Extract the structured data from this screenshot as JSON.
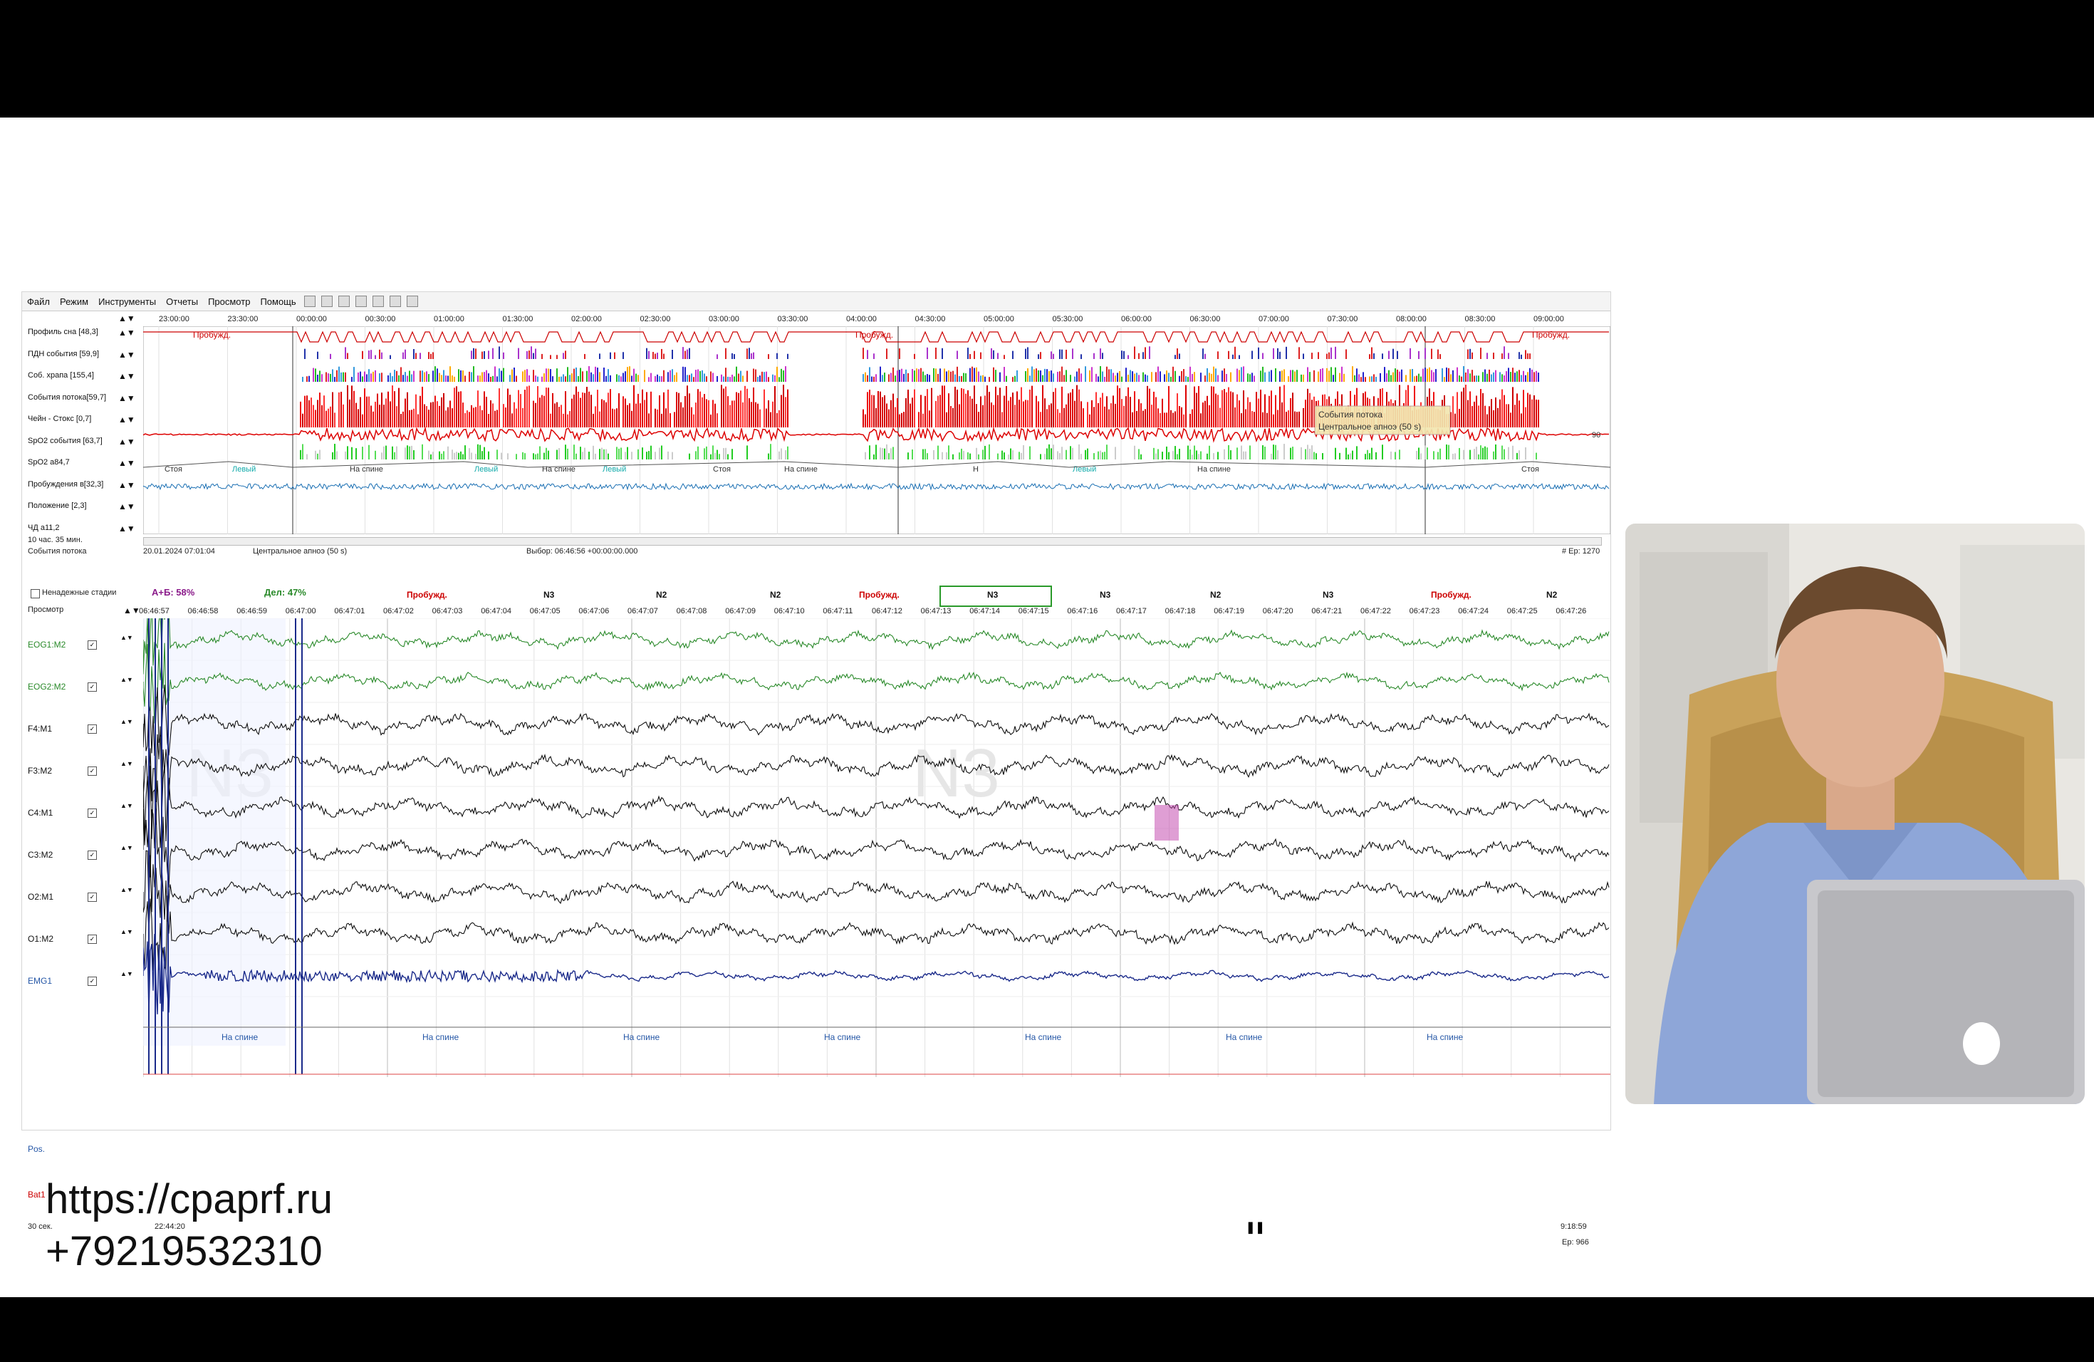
{
  "menu": [
    "Файл",
    "Режим",
    "Инструменты",
    "Отчеты",
    "Просмотр",
    "Помощь"
  ],
  "overview": {
    "times": [
      "23:00:00",
      "23:30:00",
      "00:00:00",
      "00:30:00",
      "01:00:00",
      "01:30:00",
      "02:00:00",
      "02:30:00",
      "03:00:00",
      "03:30:00",
      "04:00:00",
      "04:30:00",
      "05:00:00",
      "05:30:00",
      "06:00:00",
      "06:30:00",
      "07:00:00",
      "07:30:00",
      "08:00:00",
      "08:30:00",
      "09:00:00"
    ],
    "channels": [
      "Профиль сна [48,3]",
      "ПДН события [59,9]",
      "Соб. храпа [155,4]",
      "События потока[59,7]",
      "Чейн - Стокс [0,7]",
      "SpO2 события [63,7]",
      "SpO2 а84,7",
      "Пробуждения в[32,3]",
      "Положение [2,3]",
      "ЧД а11,2"
    ],
    "hypno_labels": [
      "Пробужд.",
      "Пробужд.",
      "Пробужд."
    ],
    "position_labels": [
      "Стоя",
      "Левый",
      "На спине",
      "Левый",
      "На спине",
      "Левый",
      "Стоя",
      "На спине",
      "Н",
      "Левый",
      "На спине",
      "Стоя"
    ],
    "tooltip_line1": "События потока",
    "tooltip_line2": "Центральное апноэ (50 s)",
    "right_value": "90",
    "duration": "10 час. 35 мин."
  },
  "status": {
    "event_type": "События потока",
    "date": "20.01.2024  07:01:04",
    "event": "Центральное апноэ (50 s)",
    "selection": "Выбор: 06:46:56  +00:00:00.000",
    "epoch_top": "# Ep: 1270"
  },
  "stages_bar": {
    "checkbox_label": "Ненадежные стадии",
    "ab": "A+Б: 58%",
    "de": "Дел: 47%",
    "stages": [
      "Пробужд.",
      "N3",
      "N2",
      "N2",
      "Пробужд.",
      "N3",
      "N3",
      "N2",
      "N3",
      "Пробужд.",
      "N2"
    ]
  },
  "page": {
    "view_label": "Просмотр",
    "times": [
      "06:46:57",
      "06:46:58",
      "06:46:59",
      "06:47:00",
      "06:47:01",
      "06:47:02",
      "06:47:03",
      "06:47:04",
      "06:47:05",
      "06:47:06",
      "06:47:07",
      "06:47:08",
      "06:47:09",
      "06:47:10",
      "06:47:11",
      "06:47:12",
      "06:47:13",
      "06:47:14",
      "06:47:15",
      "06:47:16",
      "06:47:17",
      "06:47:18",
      "06:47:19",
      "06:47:20",
      "06:47:21",
      "06:47:22",
      "06:47:23",
      "06:47:24",
      "06:47:25",
      "06:47:26"
    ],
    "channels": [
      {
        "name": "EOG1:M2",
        "color": "#2a8a2a"
      },
      {
        "name": "EOG2:M2",
        "color": "#2a8a2a"
      },
      {
        "name": "F4:M1",
        "color": "#111111"
      },
      {
        "name": "F3:M2",
        "color": "#111111"
      },
      {
        "name": "C4:M1",
        "color": "#111111"
      },
      {
        "name": "C3:M2",
        "color": "#111111"
      },
      {
        "name": "O2:M1",
        "color": "#111111"
      },
      {
        "name": "O1:M2",
        "color": "#111111"
      },
      {
        "name": "EMG1",
        "color": "#1a2a8a"
      }
    ],
    "pos_label": "Pos.",
    "bat_label": "Bat1",
    "pos_values": [
      "На спине",
      "На спине",
      "На спине",
      "На спине",
      "На спине",
      "На спине",
      "На спине"
    ],
    "watermark": "N3",
    "window": "30 сек.",
    "start_time": "22:44:20",
    "end_time": "9:18:59",
    "epoch_bottom": "Ep: 966"
  },
  "contact": {
    "url": "https://cpaprf.ru",
    "phone": "+79219532310"
  }
}
